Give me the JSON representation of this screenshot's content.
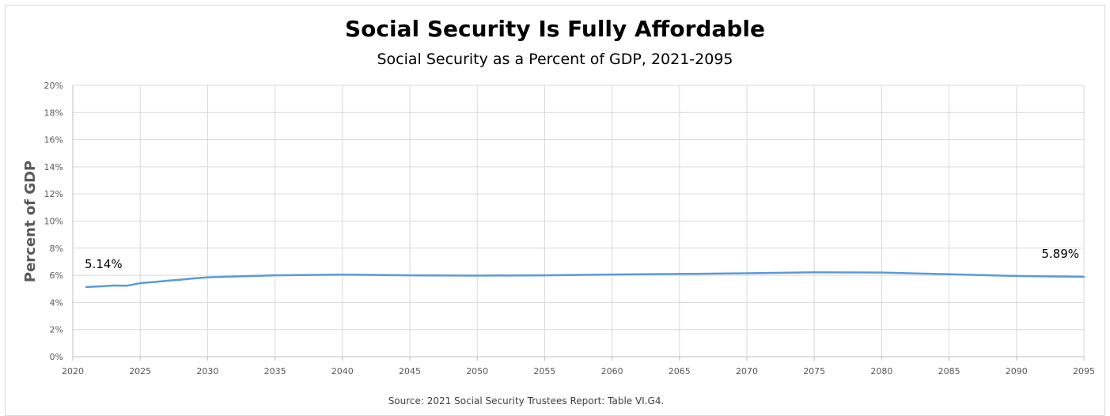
{
  "chart_data": {
    "type": "line",
    "title": "Social Security Is Fully Affordable",
    "subtitle": "Social Security as a Percent of GDP, 2021-2095",
    "xlabel": "",
    "ylabel": "Percent of GDP",
    "source": "Source: 2021 Social Security Trustees Report: Table VI.G4.",
    "xlim": [
      2020,
      2095
    ],
    "ylim": [
      0,
      20
    ],
    "x_ticks": [
      2020,
      2025,
      2030,
      2035,
      2040,
      2045,
      2050,
      2055,
      2060,
      2065,
      2070,
      2075,
      2080,
      2085,
      2090,
      2095
    ],
    "y_ticks": [
      0,
      2,
      4,
      6,
      8,
      10,
      12,
      14,
      16,
      18,
      20
    ],
    "y_tick_labels": [
      "0%",
      "2%",
      "4%",
      "6%",
      "8%",
      "10%",
      "12%",
      "14%",
      "16%",
      "18%",
      "20%"
    ],
    "grid": true,
    "legend": "none",
    "colors": {
      "line": "#5b9bd5",
      "grid": "#d9d9d9",
      "axis": "#bfbfbf",
      "text": "#595959"
    },
    "series": [
      {
        "x": [
          2021,
          2022,
          2023,
          2024,
          2025,
          2026,
          2027,
          2028,
          2029,
          2030,
          2035,
          2040,
          2045,
          2050,
          2055,
          2060,
          2065,
          2070,
          2075,
          2080,
          2085,
          2090,
          2095
        ],
        "values": [
          5.14,
          5.18,
          5.25,
          5.23,
          5.42,
          5.5,
          5.6,
          5.68,
          5.77,
          5.85,
          6.0,
          6.05,
          6.0,
          5.98,
          6.0,
          6.06,
          6.1,
          6.15,
          6.22,
          6.2,
          6.08,
          5.95,
          5.89
        ]
      }
    ],
    "annotations": [
      {
        "text": "5.14%",
        "x": 2021,
        "y": 5.14,
        "position": "above"
      },
      {
        "text": "5.89%",
        "x": 2095,
        "y": 5.89,
        "position": "above-left"
      }
    ]
  }
}
